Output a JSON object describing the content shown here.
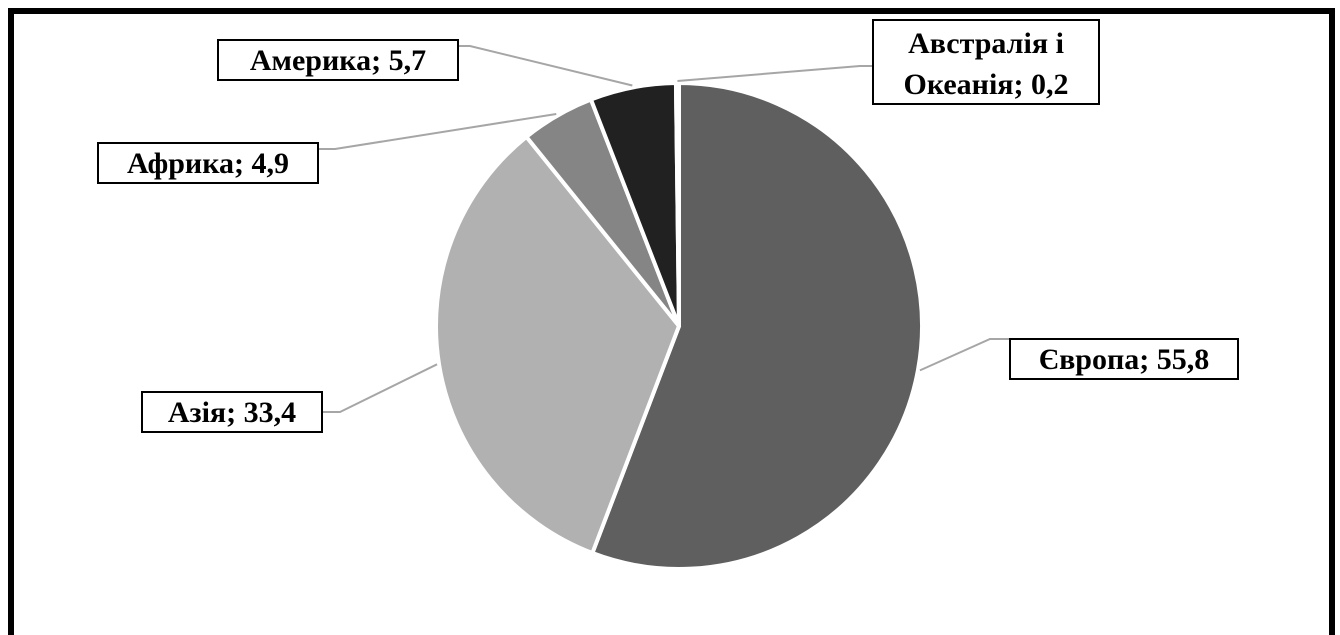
{
  "chart_data": {
    "type": "pie",
    "title": "",
    "slices": [
      {
        "label": "Європа; 55,8",
        "name": "Європа",
        "value": 55.8,
        "color": "#5f5f5f"
      },
      {
        "label": "Азія; 33,4",
        "name": "Азія",
        "value": 33.4,
        "color": "#b1b1b1"
      },
      {
        "label": "Африка; 4,9",
        "name": "Африка",
        "value": 4.9,
        "color": "#858585"
      },
      {
        "label": "Америка; 5,7",
        "name": "Америка",
        "value": 5.7,
        "color": "#212121"
      },
      {
        "label_lines": [
          "Австралія і",
          "Океанія; 0,2"
        ],
        "name": "Австралія і Океанія",
        "value": 0.2,
        "color": "#d9d9d9"
      }
    ],
    "legend": "none"
  }
}
